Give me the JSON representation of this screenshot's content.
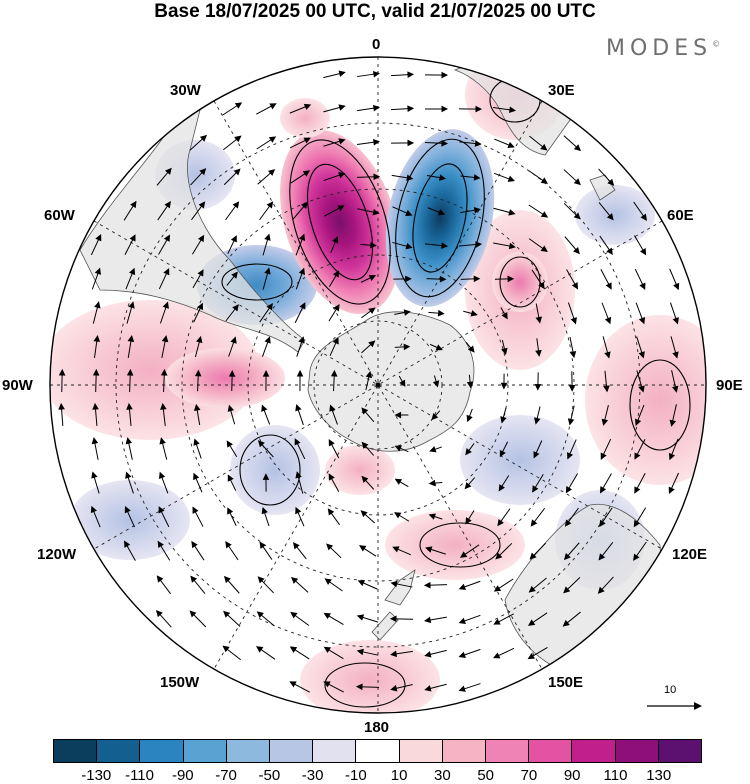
{
  "title": "Base 18/07/2025 00 UTC, valid 21/07/2025 00 UTC",
  "brand": "MODES",
  "brand_mark": "©",
  "longitude_labels": {
    "lon_0": "0",
    "lon_30e": "30E",
    "lon_60e": "60E",
    "lon_90e": "90E",
    "lon_120e": "120E",
    "lon_150e": "150E",
    "lon_180": "180",
    "lon_150w": "150W",
    "lon_120w": "120W",
    "lon_90w": "90W",
    "lon_60w": "60W",
    "lon_30w": "30W"
  },
  "reference_vector_label": "10",
  "colorbar": {
    "colors": [
      "#0b3d5c",
      "#135f8f",
      "#2a84bf",
      "#58a3d2",
      "#8eb9df",
      "#b8c6e6",
      "#e2e1f0",
      "#ffffff",
      "#f9d9dc",
      "#f6b3c4",
      "#f083b6",
      "#e452a4",
      "#c11f8c",
      "#8e0f78",
      "#5c1070"
    ],
    "labels": [
      "-130",
      "-110",
      "-90",
      "-70",
      "-50",
      "-30",
      "-10",
      "10",
      "30",
      "50",
      "70",
      "90",
      "110",
      "130"
    ]
  }
}
